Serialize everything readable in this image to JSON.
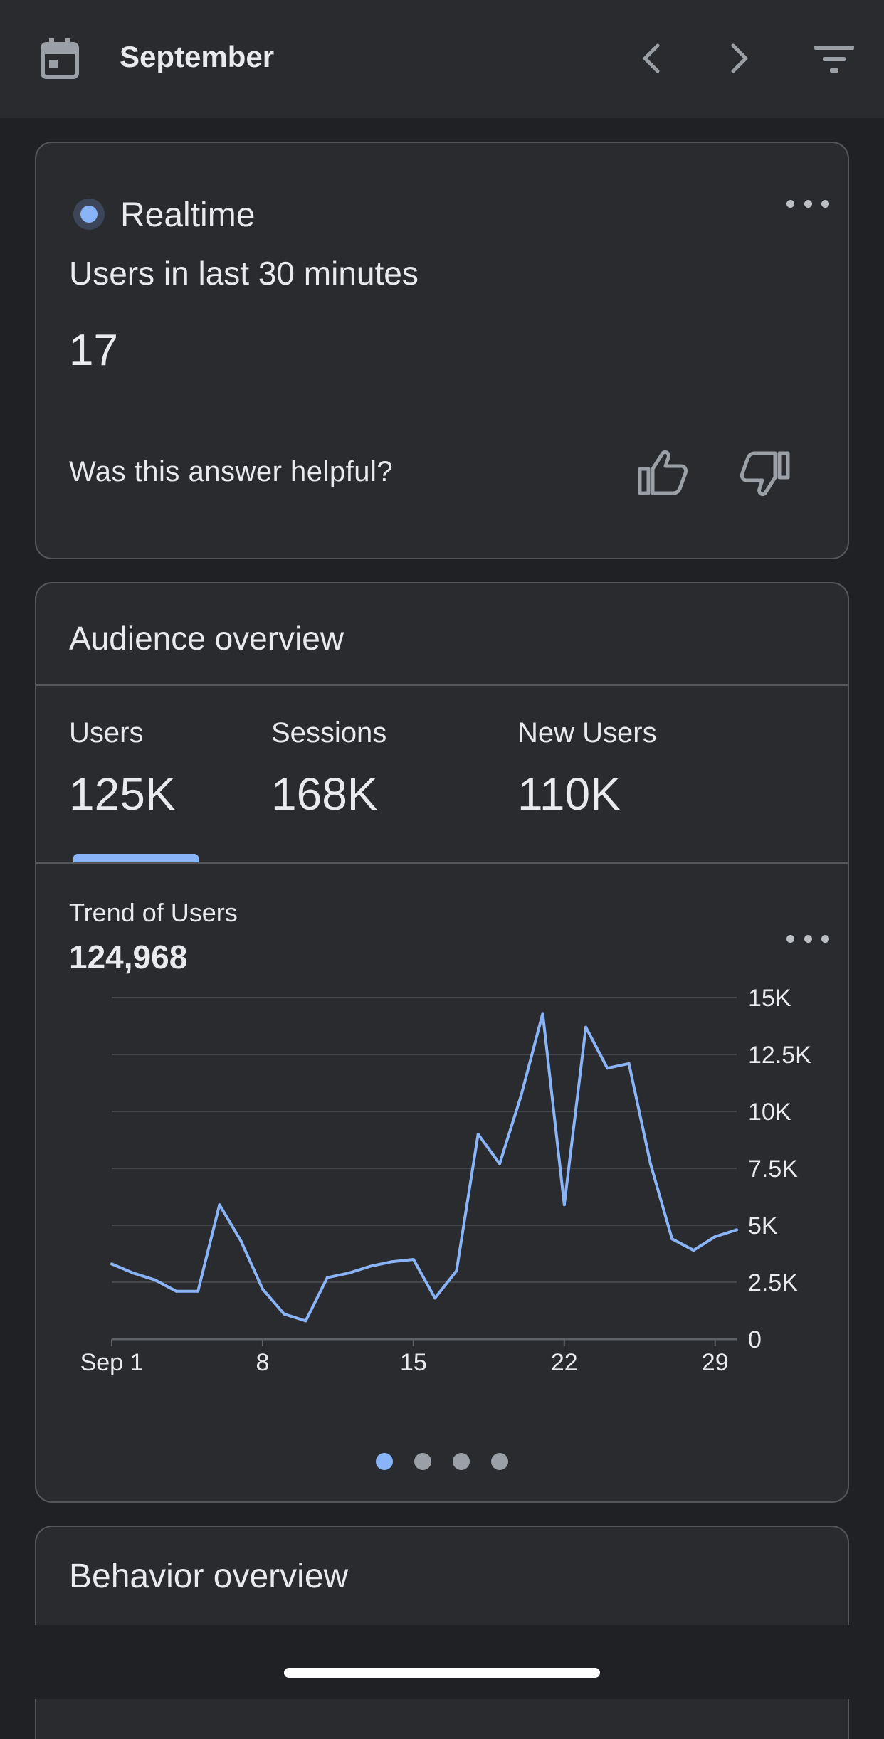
{
  "header": {
    "month": "September",
    "icons": [
      "calendar-icon",
      "chevron-left-icon",
      "chevron-right-icon",
      "filter-icon"
    ]
  },
  "realtime": {
    "label": "Realtime",
    "subtitle": "Users in last 30 minutes",
    "value": "17",
    "question": "Was this answer helpful?"
  },
  "audience": {
    "title": "Audience overview",
    "tabs": [
      {
        "label": "Users",
        "value": "125K"
      },
      {
        "label": "Sessions",
        "value": "168K"
      },
      {
        "label": "New Users",
        "value": "110K"
      }
    ],
    "selected_tab": "Users",
    "trend_label": "Trend of Users",
    "trend_value": "124,968",
    "page_count": 4,
    "active_page": 1
  },
  "behavior": {
    "title": "Behavior overview"
  },
  "colors": {
    "accent": "#8ab4f8",
    "background": "#202124",
    "card": "#2a2b2e"
  },
  "chart_data": {
    "type": "line",
    "x_tick_labels": [
      "Sep 1",
      "8",
      "15",
      "22",
      "29"
    ],
    "y_tick_labels": [
      "0",
      "2.5K",
      "5K",
      "7.5K",
      "10K",
      "12.5K",
      "15K"
    ],
    "ylim": [
      0,
      15000
    ],
    "grid": true,
    "y_axis_position": "right",
    "series": [
      {
        "color": "#8ab4f8",
        "x": [
          1,
          2,
          3,
          4,
          5,
          6,
          7,
          8,
          9,
          10,
          11,
          12,
          13,
          14,
          15,
          16,
          17,
          18,
          19,
          20,
          21,
          22,
          23,
          24,
          25,
          26,
          27,
          28,
          29,
          30
        ],
        "values": [
          3300,
          2900,
          2600,
          2100,
          2100,
          5900,
          4300,
          2200,
          1100,
          800,
          2700,
          2900,
          3200,
          3400,
          3500,
          1800,
          3000,
          9000,
          7700,
          10700,
          14300,
          5900,
          13700,
          11900,
          12100,
          7700,
          4400,
          3900,
          4500,
          4800
        ]
      }
    ]
  }
}
